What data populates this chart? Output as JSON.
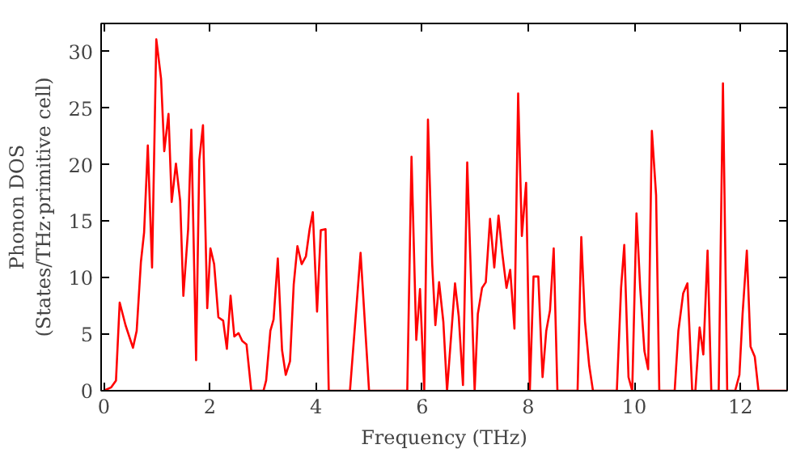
{
  "chart_data": {
    "type": "line",
    "xlabel": "Frequency (THz)",
    "ylabel": "Phonon DOS\n(States/THz·primitive cell)",
    "xlim": [
      -0.05,
      12.88
    ],
    "ylim": [
      0,
      32.5
    ],
    "xticks": [
      0,
      2,
      4,
      6,
      8,
      10,
      12
    ],
    "yticks": [
      0,
      5,
      10,
      15,
      20,
      25,
      30
    ],
    "grid": false,
    "series": [
      {
        "color": "#ff0000",
        "x": [
          0,
          0.14,
          0.23,
          0.3,
          0.41,
          0.55,
          0.62,
          0.7,
          0.76,
          0.83,
          0.91,
          0.99,
          1.08,
          1.14,
          1.22,
          1.28,
          1.36,
          1.44,
          1.5,
          1.59,
          1.65,
          1.74,
          1.8,
          1.87,
          1.95,
          2.01,
          2.08,
          2.16,
          2.25,
          2.32,
          2.39,
          2.46,
          2.54,
          2.61,
          2.69,
          2.78,
          3.01,
          3.06,
          3.14,
          3.2,
          3.28,
          3.36,
          3.43,
          3.51,
          3.58,
          3.65,
          3.73,
          3.81,
          3.88,
          3.94,
          4.02,
          4.09,
          4.18,
          4.24,
          4.64,
          4.84,
          5.0,
          5.72,
          5.8,
          5.89,
          5.96,
          6.04,
          6.11,
          6.19,
          6.25,
          6.32,
          6.4,
          6.47,
          6.62,
          6.69,
          6.77,
          6.85,
          6.99,
          7.05,
          7.13,
          7.2,
          7.28,
          7.36,
          7.44,
          7.51,
          7.59,
          7.66,
          7.74,
          7.81,
          7.88,
          7.96,
          8.03,
          8.1,
          8.19,
          8.27,
          8.34,
          8.41,
          8.48,
          8.55,
          8.93,
          9.0,
          9.07,
          9.15,
          9.22,
          9.67,
          9.75,
          9.81,
          9.89,
          9.96,
          10.04,
          10.11,
          10.19,
          10.26,
          10.33,
          10.41,
          10.47,
          10.76,
          10.83,
          10.92,
          11.0,
          11.09,
          11.15,
          11.23,
          11.3,
          11.38,
          11.45,
          11.59,
          11.67,
          11.75,
          11.9,
          11.98,
          12.04,
          12.12,
          12.19,
          12.27,
          12.34,
          12.88
        ],
        "values": [
          0,
          0.3,
          0.9,
          7.8,
          5.8,
          3.8,
          5.3,
          11.4,
          14,
          21.7,
          10.9,
          31.1,
          27.6,
          21.2,
          24.5,
          16.7,
          20.1,
          16.8,
          8.4,
          14.3,
          23.1,
          2.7,
          20.4,
          23.5,
          7.3,
          12.6,
          11.2,
          6.5,
          6.2,
          3.7,
          8.4,
          4.8,
          5.1,
          4.4,
          4.1,
          0,
          0,
          0.9,
          5.3,
          6.3,
          11.7,
          3.6,
          1.4,
          2.6,
          9.4,
          12.8,
          11.2,
          11.9,
          14.3,
          15.8,
          7.0,
          14.2,
          14.3,
          0,
          0,
          12.2,
          0,
          0,
          20.7,
          4.5,
          9.0,
          0,
          24.0,
          11.2,
          5.8,
          9.6,
          6.1,
          0,
          9.5,
          6.6,
          0.5,
          20.2,
          0,
          6.8,
          9.1,
          9.6,
          15.2,
          10.9,
          15.5,
          12.2,
          9.1,
          10.7,
          5.5,
          26.3,
          13.7,
          18.4,
          0,
          10.1,
          10.1,
          1.2,
          5.3,
          7.1,
          12.6,
          0,
          0,
          13.6,
          6.1,
          2.2,
          0,
          0,
          9.1,
          12.9,
          1.2,
          0,
          15.7,
          9.1,
          3.5,
          1.9,
          23.0,
          17.3,
          0,
          0,
          5.3,
          8.6,
          9.5,
          0,
          0,
          5.6,
          3.2,
          12.4,
          0,
          0,
          27.2,
          0,
          0,
          1.4,
          6.8,
          12.4,
          3.9,
          3.0,
          0,
          0
        ]
      }
    ]
  }
}
